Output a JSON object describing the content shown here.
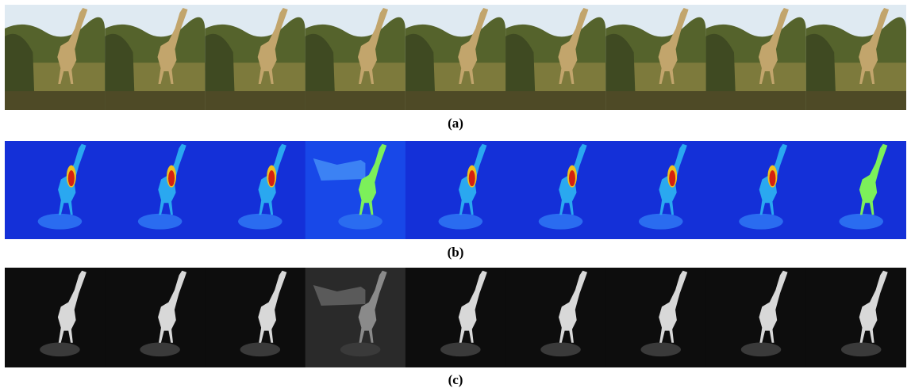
{
  "panels": [
    {
      "id": "a",
      "caption": "(a)",
      "frames": 9,
      "kind": "rgb"
    },
    {
      "id": "b",
      "caption": "(b)",
      "frames": 9,
      "kind": "heatmap"
    },
    {
      "id": "c",
      "caption": "(c)",
      "frames": 9,
      "kind": "grayscale"
    }
  ],
  "colors": {
    "sky": "#dfeaf2",
    "bush": "#3f4a22",
    "grass": "#7d7a3c",
    "giraffe": "#c2a56c",
    "heat_bg": "#1430d8",
    "heat_hot": "#d42010",
    "heat_mid": "#f0c020",
    "heat_green": "#7cf05a",
    "gray_bg": "#0d0d0d",
    "gray_hi": "#d8d8d8"
  },
  "highlighted_frames": {
    "b": [
      3,
      8
    ],
    "c": [
      3
    ]
  }
}
